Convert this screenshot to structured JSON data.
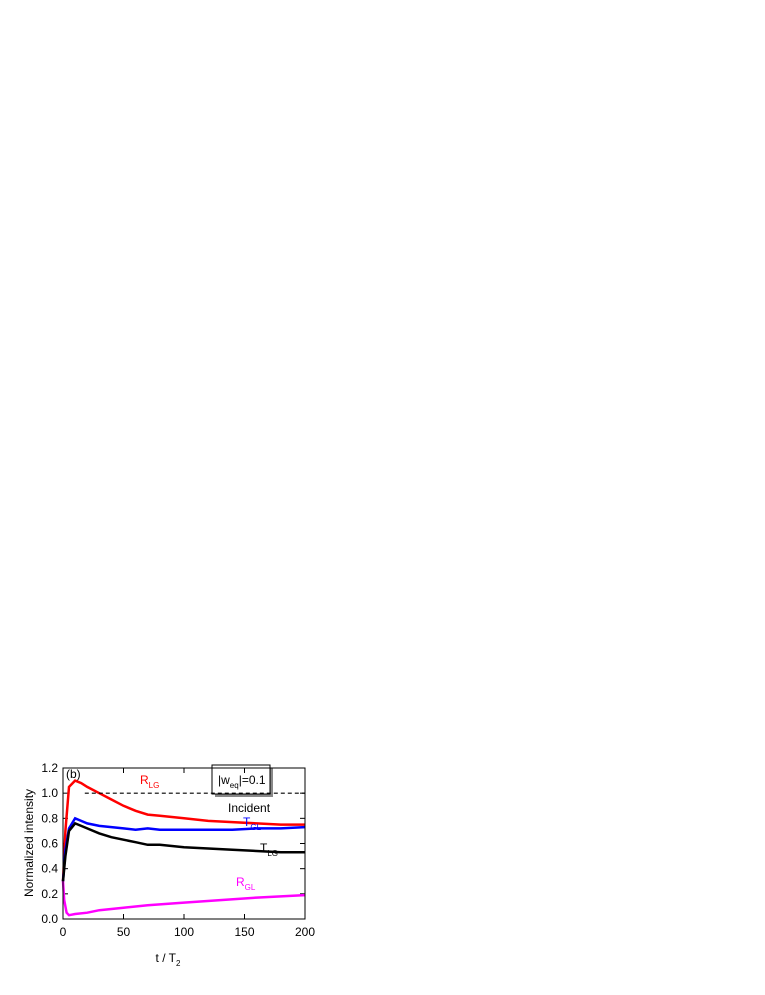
{
  "chart_data": {
    "type": "line",
    "panel_label": "(b)",
    "annotation": {
      "prefix": "|w",
      "subscript": "eq",
      "suffix": "|=0.1"
    },
    "x_label": {
      "text": "t / T",
      "subscript": "2"
    },
    "y_label": "Normalized intensity",
    "xlim": [
      0,
      200
    ],
    "xticks": [
      0,
      50,
      100,
      150,
      200
    ],
    "ylim": [
      0,
      1.2
    ],
    "yticks": [
      {
        "value": 0,
        "label": "0.0"
      },
      0.2,
      0.4,
      0.6,
      0.8,
      {
        "value": 1,
        "label": "1.0"
      },
      1.2
    ],
    "series": [
      {
        "name": "R",
        "subscript": "LG",
        "color": "#ff0000",
        "x": [
          0,
          2,
          5,
          10,
          15,
          20,
          30,
          40,
          50,
          60,
          70,
          80,
          100,
          120,
          140,
          160,
          180,
          200
        ],
        "values": [
          0.3,
          0.7,
          1.05,
          1.1,
          1.08,
          1.05,
          1.0,
          0.95,
          0.9,
          0.86,
          0.83,
          0.82,
          0.8,
          0.78,
          0.77,
          0.76,
          0.75,
          0.75
        ]
      },
      {
        "name": "T",
        "subscript": "GL",
        "color": "#0000ff",
        "x": [
          0,
          2,
          5,
          10,
          15,
          20,
          30,
          40,
          50,
          60,
          70,
          80,
          100,
          120,
          140,
          160,
          180,
          200
        ],
        "values": [
          0.3,
          0.55,
          0.72,
          0.8,
          0.78,
          0.76,
          0.74,
          0.73,
          0.72,
          0.71,
          0.72,
          0.71,
          0.71,
          0.71,
          0.71,
          0.72,
          0.72,
          0.73
        ]
      },
      {
        "name": "T",
        "subscript": "LG",
        "color": "#000000",
        "x": [
          0,
          2,
          5,
          10,
          15,
          20,
          30,
          40,
          50,
          60,
          70,
          80,
          100,
          120,
          140,
          160,
          180,
          200
        ],
        "values": [
          0.3,
          0.5,
          0.7,
          0.76,
          0.74,
          0.72,
          0.68,
          0.65,
          0.63,
          0.61,
          0.59,
          0.59,
          0.57,
          0.56,
          0.55,
          0.54,
          0.53,
          0.53
        ]
      },
      {
        "name": "R",
        "subscript": "GL",
        "color": "#ff00ff",
        "x": [
          0,
          1,
          3,
          5,
          10,
          20,
          30,
          50,
          70,
          100,
          130,
          160,
          180,
          200
        ],
        "values": [
          0.3,
          0.15,
          0.05,
          0.03,
          0.04,
          0.05,
          0.07,
          0.09,
          0.11,
          0.13,
          0.15,
          0.17,
          0.18,
          0.19
        ]
      },
      {
        "name": "Incident",
        "color": "#000000",
        "dashed": true,
        "x": [
          18,
          200
        ],
        "values": [
          1,
          1
        ]
      }
    ]
  }
}
